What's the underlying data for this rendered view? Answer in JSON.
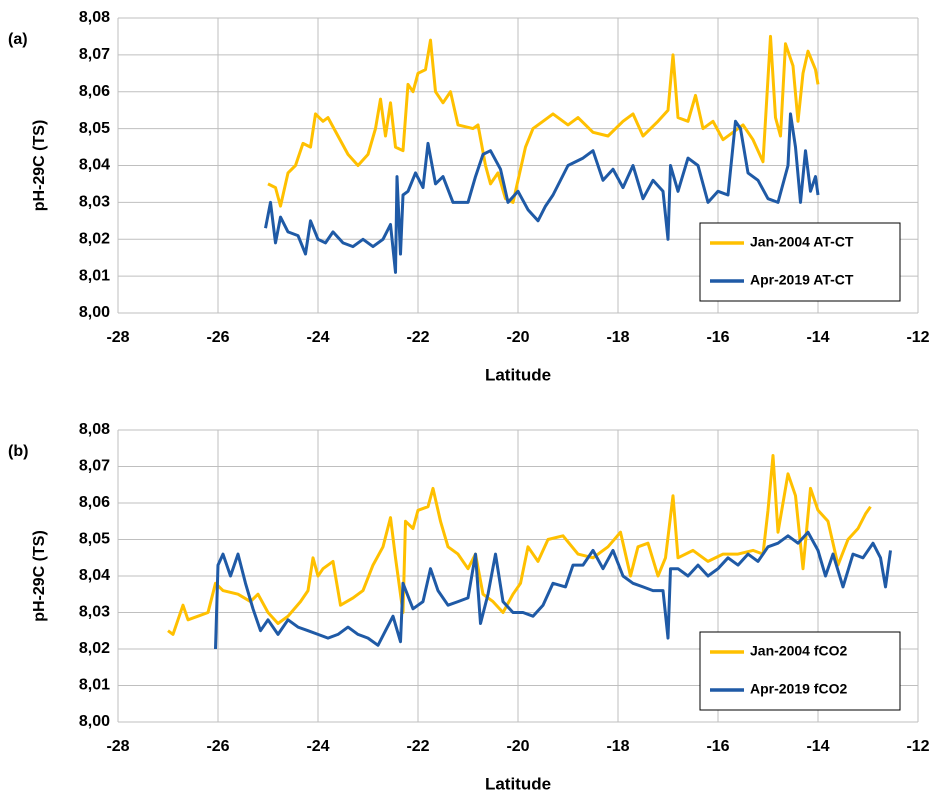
{
  "chart_data": [
    {
      "type": "line",
      "panel_label": "(a)",
      "y_label": "pH-29C (TS)",
      "x_label": "Latitude",
      "xlim": [
        -28,
        -12
      ],
      "xticks": [
        -28,
        -26,
        -24,
        -22,
        -20,
        -18,
        -16,
        -14,
        -12
      ],
      "ylim": [
        8.0,
        8.08
      ],
      "yticks": [
        {
          "value": 8.0,
          "label": "8,00"
        },
        {
          "value": 8.01,
          "label": "8,01"
        },
        {
          "value": 8.02,
          "label": "8,02"
        },
        {
          "value": 8.03,
          "label": "8,03"
        },
        {
          "value": 8.04,
          "label": "8,04"
        },
        {
          "value": 8.05,
          "label": "8,05"
        },
        {
          "value": 8.06,
          "label": "8,06"
        },
        {
          "value": 8.07,
          "label": "8,07"
        },
        {
          "value": 8.08,
          "label": "8,08"
        }
      ],
      "grid": true,
      "legend": "lower right",
      "series": [
        {
          "name": "Jan-2004 AT-CT",
          "color": "#ffc000",
          "x": [
            -25.0,
            -24.85,
            -24.75,
            -24.6,
            -24.45,
            -24.3,
            -24.15,
            -24.05,
            -23.9,
            -23.8,
            -23.6,
            -23.4,
            -23.2,
            -23.0,
            -22.85,
            -22.75,
            -22.65,
            -22.55,
            -22.45,
            -22.3,
            -22.2,
            -22.1,
            -22.0,
            -21.85,
            -21.75,
            -21.65,
            -21.5,
            -21.35,
            -21.2,
            -20.9,
            -20.8,
            -20.65,
            -20.55,
            -20.4,
            -20.25,
            -20.1,
            -20.0,
            -19.85,
            -19.7,
            -19.5,
            -19.3,
            -19.0,
            -18.8,
            -18.5,
            -18.2,
            -17.9,
            -17.7,
            -17.5,
            -17.2,
            -17.0,
            -16.9,
            -16.8,
            -16.6,
            -16.45,
            -16.3,
            -16.1,
            -15.9,
            -15.7,
            -15.5,
            -15.3,
            -15.1,
            -14.95,
            -14.85,
            -14.75,
            -14.65,
            -14.5,
            -14.4,
            -14.3,
            -14.2,
            -14.05,
            -14.0
          ],
          "values": [
            8.035,
            8.034,
            8.029,
            8.038,
            8.04,
            8.046,
            8.045,
            8.054,
            8.052,
            8.053,
            8.048,
            8.043,
            8.04,
            8.043,
            8.05,
            8.058,
            8.048,
            8.057,
            8.045,
            8.044,
            8.062,
            8.06,
            8.065,
            8.066,
            8.074,
            8.06,
            8.057,
            8.06,
            8.051,
            8.05,
            8.051,
            8.04,
            8.035,
            8.038,
            8.031,
            8.03,
            8.036,
            8.045,
            8.05,
            8.052,
            8.054,
            8.051,
            8.053,
            8.049,
            8.048,
            8.052,
            8.054,
            8.048,
            8.052,
            8.055,
            8.07,
            8.053,
            8.052,
            8.059,
            8.05,
            8.052,
            8.047,
            8.049,
            8.051,
            8.047,
            8.041,
            8.075,
            8.053,
            8.048,
            8.073,
            8.067,
            8.052,
            8.065,
            8.071,
            8.066,
            8.062
          ]
        },
        {
          "name": "Apr-2019 AT-CT",
          "color": "#1f5aa6",
          "x": [
            -25.05,
            -24.95,
            -24.85,
            -24.75,
            -24.6,
            -24.4,
            -24.25,
            -24.15,
            -24.0,
            -23.85,
            -23.7,
            -23.5,
            -23.3,
            -23.1,
            -22.9,
            -22.7,
            -22.55,
            -22.45,
            -22.42,
            -22.35,
            -22.3,
            -22.2,
            -22.05,
            -21.9,
            -21.8,
            -21.65,
            -21.5,
            -21.3,
            -21.0,
            -20.85,
            -20.7,
            -20.55,
            -20.35,
            -20.2,
            -20.0,
            -19.8,
            -19.6,
            -19.45,
            -19.3,
            -19.0,
            -18.7,
            -18.5,
            -18.3,
            -18.1,
            -17.9,
            -17.7,
            -17.5,
            -17.3,
            -17.1,
            -17.0,
            -16.95,
            -16.8,
            -16.6,
            -16.4,
            -16.2,
            -16.0,
            -15.8,
            -15.65,
            -15.55,
            -15.4,
            -15.2,
            -15.0,
            -14.8,
            -14.6,
            -14.55,
            -14.45,
            -14.35,
            -14.25,
            -14.15,
            -14.05,
            -14.0
          ],
          "values": [
            8.023,
            8.03,
            8.019,
            8.026,
            8.022,
            8.021,
            8.016,
            8.025,
            8.02,
            8.019,
            8.022,
            8.019,
            8.018,
            8.02,
            8.018,
            8.02,
            8.024,
            8.011,
            8.037,
            8.016,
            8.032,
            8.033,
            8.038,
            8.034,
            8.046,
            8.035,
            8.037,
            8.03,
            8.03,
            8.037,
            8.043,
            8.044,
            8.039,
            8.03,
            8.033,
            8.028,
            8.025,
            8.029,
            8.032,
            8.04,
            8.042,
            8.044,
            8.036,
            8.039,
            8.034,
            8.04,
            8.031,
            8.036,
            8.033,
            8.02,
            8.04,
            8.033,
            8.042,
            8.04,
            8.03,
            8.033,
            8.032,
            8.052,
            8.05,
            8.038,
            8.036,
            8.031,
            8.03,
            8.04,
            8.054,
            8.045,
            8.03,
            8.044,
            8.033,
            8.037,
            8.032
          ]
        }
      ]
    },
    {
      "type": "line",
      "panel_label": "(b)",
      "y_label": "pH-29C (TS)",
      "x_label": "Latitude",
      "xlim": [
        -28,
        -12
      ],
      "xticks": [
        -28,
        -26,
        -24,
        -22,
        -20,
        -18,
        -16,
        -14,
        -12
      ],
      "ylim": [
        8.0,
        8.08
      ],
      "yticks": [
        {
          "value": 8.0,
          "label": "8,00"
        },
        {
          "value": 8.01,
          "label": "8,01"
        },
        {
          "value": 8.02,
          "label": "8,02"
        },
        {
          "value": 8.03,
          "label": "8,03"
        },
        {
          "value": 8.04,
          "label": "8,04"
        },
        {
          "value": 8.05,
          "label": "8,05"
        },
        {
          "value": 8.06,
          "label": "8,06"
        },
        {
          "value": 8.07,
          "label": "8,07"
        },
        {
          "value": 8.08,
          "label": "8,08"
        }
      ],
      "grid": true,
      "legend": "lower right",
      "series": [
        {
          "name": "Jan-2004 fCO2",
          "color": "#ffc000",
          "x": [
            -27.0,
            -26.9,
            -26.7,
            -26.6,
            -26.4,
            -26.2,
            -26.05,
            -25.9,
            -25.6,
            -25.35,
            -25.2,
            -25.0,
            -24.8,
            -24.6,
            -24.35,
            -24.2,
            -24.1,
            -24.0,
            -23.9,
            -23.7,
            -23.55,
            -23.3,
            -23.1,
            -22.9,
            -22.7,
            -22.55,
            -22.45,
            -22.3,
            -22.25,
            -22.1,
            -22.0,
            -21.8,
            -21.7,
            -21.55,
            -21.4,
            -21.2,
            -21.0,
            -20.85,
            -20.7,
            -20.5,
            -20.3,
            -20.1,
            -19.95,
            -19.8,
            -19.6,
            -19.4,
            -19.1,
            -18.8,
            -18.5,
            -18.2,
            -17.95,
            -17.75,
            -17.6,
            -17.4,
            -17.2,
            -17.05,
            -16.9,
            -16.8,
            -16.5,
            -16.2,
            -15.9,
            -15.6,
            -15.3,
            -15.1,
            -15.0,
            -14.9,
            -14.8,
            -14.6,
            -14.45,
            -14.3,
            -14.15,
            -14.0,
            -13.8,
            -13.6,
            -13.4,
            -13.2,
            -13.05,
            -12.95
          ],
          "values": [
            8.025,
            8.024,
            8.032,
            8.028,
            8.029,
            8.03,
            8.038,
            8.036,
            8.035,
            8.033,
            8.035,
            8.03,
            8.027,
            8.029,
            8.033,
            8.036,
            8.045,
            8.04,
            8.042,
            8.044,
            8.032,
            8.034,
            8.036,
            8.043,
            8.048,
            8.056,
            8.045,
            8.03,
            8.055,
            8.053,
            8.058,
            8.059,
            8.064,
            8.055,
            8.048,
            8.046,
            8.042,
            8.046,
            8.035,
            8.033,
            8.03,
            8.035,
            8.038,
            8.048,
            8.044,
            8.05,
            8.051,
            8.046,
            8.045,
            8.048,
            8.052,
            8.04,
            8.048,
            8.049,
            8.04,
            8.045,
            8.062,
            8.045,
            8.047,
            8.044,
            8.046,
            8.046,
            8.047,
            8.046,
            8.058,
            8.073,
            8.052,
            8.068,
            8.062,
            8.042,
            8.064,
            8.058,
            8.055,
            8.043,
            8.05,
            8.053,
            8.057,
            8.059
          ]
        },
        {
          "name": "Apr-2019 fCO2",
          "color": "#1f5aa6",
          "x": [
            -26.05,
            -26.0,
            -25.9,
            -25.75,
            -25.6,
            -25.45,
            -25.3,
            -25.15,
            -25.0,
            -24.8,
            -24.6,
            -24.4,
            -24.2,
            -24.0,
            -23.8,
            -23.6,
            -23.4,
            -23.2,
            -23.0,
            -22.8,
            -22.65,
            -22.5,
            -22.35,
            -22.3,
            -22.1,
            -21.9,
            -21.75,
            -21.6,
            -21.4,
            -21.2,
            -21.0,
            -20.85,
            -20.75,
            -20.6,
            -20.45,
            -20.3,
            -20.1,
            -19.9,
            -19.7,
            -19.5,
            -19.3,
            -19.05,
            -18.9,
            -18.7,
            -18.5,
            -18.3,
            -18.1,
            -17.9,
            -17.7,
            -17.5,
            -17.3,
            -17.1,
            -17.0,
            -16.95,
            -16.8,
            -16.6,
            -16.4,
            -16.2,
            -16.0,
            -15.8,
            -15.6,
            -15.4,
            -15.2,
            -15.0,
            -14.8,
            -14.6,
            -14.4,
            -14.2,
            -14.0,
            -13.85,
            -13.7,
            -13.5,
            -13.3,
            -13.1,
            -12.9,
            -12.75,
            -12.65,
            -12.55
          ],
          "values": [
            8.02,
            8.043,
            8.046,
            8.04,
            8.046,
            8.038,
            8.031,
            8.025,
            8.028,
            8.024,
            8.028,
            8.026,
            8.025,
            8.024,
            8.023,
            8.024,
            8.026,
            8.024,
            8.023,
            8.021,
            8.025,
            8.029,
            8.022,
            8.038,
            8.031,
            8.033,
            8.042,
            8.036,
            8.032,
            8.033,
            8.034,
            8.046,
            8.027,
            8.035,
            8.046,
            8.033,
            8.03,
            8.03,
            8.029,
            8.032,
            8.038,
            8.037,
            8.043,
            8.043,
            8.047,
            8.042,
            8.047,
            8.04,
            8.038,
            8.037,
            8.036,
            8.036,
            8.023,
            8.042,
            8.042,
            8.04,
            8.043,
            8.04,
            8.042,
            8.045,
            8.043,
            8.046,
            8.044,
            8.048,
            8.049,
            8.051,
            8.049,
            8.052,
            8.047,
            8.04,
            8.046,
            8.037,
            8.046,
            8.045,
            8.049,
            8.045,
            8.037,
            8.047
          ]
        }
      ]
    }
  ]
}
